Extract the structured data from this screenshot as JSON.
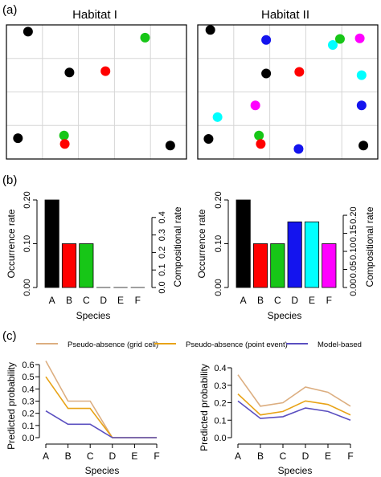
{
  "panels": {
    "a": {
      "tag": "(a)",
      "habitats": [
        {
          "title": "Habitat I",
          "grid": [
            5,
            4
          ],
          "points": [
            {
              "col": 0.6,
              "row": 0.2,
              "color": "black"
            },
            {
              "col": 3.85,
              "row": 0.38,
              "color": "green"
            },
            {
              "col": 1.75,
              "row": 1.42,
              "color": "black"
            },
            {
              "col": 2.75,
              "row": 1.38,
              "color": "red"
            },
            {
              "col": 0.32,
              "row": 3.38,
              "color": "black"
            },
            {
              "col": 1.6,
              "row": 3.3,
              "color": "green"
            },
            {
              "col": 1.62,
              "row": 3.55,
              "color": "red"
            },
            {
              "col": 4.55,
              "row": 3.6,
              "color": "black"
            }
          ]
        },
        {
          "title": "Habitat II",
          "grid": [
            5,
            4
          ],
          "points": [
            {
              "col": 0.35,
              "row": 0.15,
              "color": "black"
            },
            {
              "col": 1.9,
              "row": 0.45,
              "color": "blue"
            },
            {
              "col": 3.75,
              "row": 0.6,
              "color": "cyan"
            },
            {
              "col": 3.95,
              "row": 0.42,
              "color": "green"
            },
            {
              "col": 4.5,
              "row": 0.4,
              "color": "magenta"
            },
            {
              "col": 1.9,
              "row": 1.45,
              "color": "black"
            },
            {
              "col": 2.82,
              "row": 1.4,
              "color": "red"
            },
            {
              "col": 4.55,
              "row": 1.5,
              "color": "cyan"
            },
            {
              "col": 1.6,
              "row": 2.4,
              "color": "magenta"
            },
            {
              "col": 0.55,
              "row": 2.75,
              "color": "cyan"
            },
            {
              "col": 4.55,
              "row": 2.4,
              "color": "blue"
            },
            {
              "col": 0.3,
              "row": 3.4,
              "color": "black"
            },
            {
              "col": 1.7,
              "row": 3.3,
              "color": "green"
            },
            {
              "col": 1.75,
              "row": 3.55,
              "color": "red"
            },
            {
              "col": 2.8,
              "row": 3.7,
              "color": "blue"
            },
            {
              "col": 4.6,
              "row": 3.6,
              "color": "black"
            }
          ]
        }
      ]
    },
    "b": {
      "tag": "(b)"
    },
    "c": {
      "tag": "(c)",
      "legend": [
        {
          "label": "Pseudo-absence (grid cell)",
          "color": "#dcae80"
        },
        {
          "label": "Pseudo-absence (point event)",
          "color": "#e8a317"
        },
        {
          "label": "Model-based",
          "color": "#5a4fc0"
        }
      ]
    }
  },
  "colors": {
    "black": "#000000",
    "red": "#ff0000",
    "green": "#17c617",
    "blue": "#1414ee",
    "cyan": "#00ffff",
    "magenta": "#ff00ff"
  },
  "chart_data": [
    {
      "type": "bar",
      "panel": "b-left",
      "categories": [
        "A",
        "B",
        "C",
        "D",
        "E",
        "F"
      ],
      "values": [
        0.2,
        0.1,
        0.1,
        0,
        0,
        0
      ],
      "colors": [
        "black",
        "red",
        "green",
        "blue",
        "cyan",
        "magenta"
      ],
      "xlabel": "Species",
      "ylabel": "Occurrence rate",
      "y2label": "Compositional rate",
      "ylim": [
        0,
        0.2
      ],
      "yticks": [
        "0.00",
        "0.10",
        "0.20"
      ],
      "y2lim": [
        0,
        0.5
      ],
      "y2ticks": [
        "0.0",
        "0.1",
        "0.2",
        "0.3",
        "0.4"
      ]
    },
    {
      "type": "bar",
      "panel": "b-right",
      "categories": [
        "A",
        "B",
        "C",
        "D",
        "E",
        "F"
      ],
      "values": [
        0.2,
        0.1,
        0.1,
        0.15,
        0.15,
        0.1
      ],
      "colors": [
        "black",
        "red",
        "green",
        "blue",
        "cyan",
        "magenta"
      ],
      "xlabel": "Species",
      "ylabel": "Occurrence rate",
      "y2label": "Compositional rate",
      "ylim": [
        0,
        0.2
      ],
      "yticks": [
        "0.00",
        "0.10",
        "0.20"
      ],
      "y2lim": [
        0,
        0.2424
      ],
      "y2ticks": [
        "0.00",
        "0.05",
        "0.10",
        "0.15",
        "0.20"
      ]
    },
    {
      "type": "line",
      "panel": "c-left",
      "categories": [
        "A",
        "B",
        "C",
        "D",
        "E",
        "F"
      ],
      "xlabel": "Species",
      "ylabel": "Predicted probability",
      "ylim": [
        0,
        0.65
      ],
      "yticks": [
        "0.0",
        "0.1",
        "0.2",
        "0.3",
        "0.4",
        "0.5",
        "0.6"
      ],
      "series": [
        {
          "name": "Pseudo-absence (grid cell)",
          "values": [
            0.63,
            0.3,
            0.3,
            0.0,
            0.0,
            0.0
          ]
        },
        {
          "name": "Pseudo-absence (point event)",
          "values": [
            0.5,
            0.24,
            0.24,
            0.0,
            0.0,
            0.0
          ]
        },
        {
          "name": "Model-based",
          "values": [
            0.22,
            0.11,
            0.11,
            0.0,
            0.0,
            0.0
          ]
        }
      ]
    },
    {
      "type": "line",
      "panel": "c-right",
      "categories": [
        "A",
        "B",
        "C",
        "D",
        "E",
        "F"
      ],
      "xlabel": "Species",
      "ylabel": "Predicted probability",
      "ylim": [
        0,
        0.42
      ],
      "yticks": [
        "0.0",
        "0.1",
        "0.2",
        "0.3",
        "0.4"
      ],
      "series": [
        {
          "name": "Pseudo-absence (grid cell)",
          "values": [
            0.36,
            0.18,
            0.2,
            0.29,
            0.26,
            0.18
          ]
        },
        {
          "name": "Pseudo-absence (point event)",
          "values": [
            0.25,
            0.13,
            0.15,
            0.21,
            0.19,
            0.13
          ]
        },
        {
          "name": "Model-based",
          "values": [
            0.21,
            0.11,
            0.12,
            0.17,
            0.15,
            0.1
          ]
        }
      ]
    }
  ]
}
